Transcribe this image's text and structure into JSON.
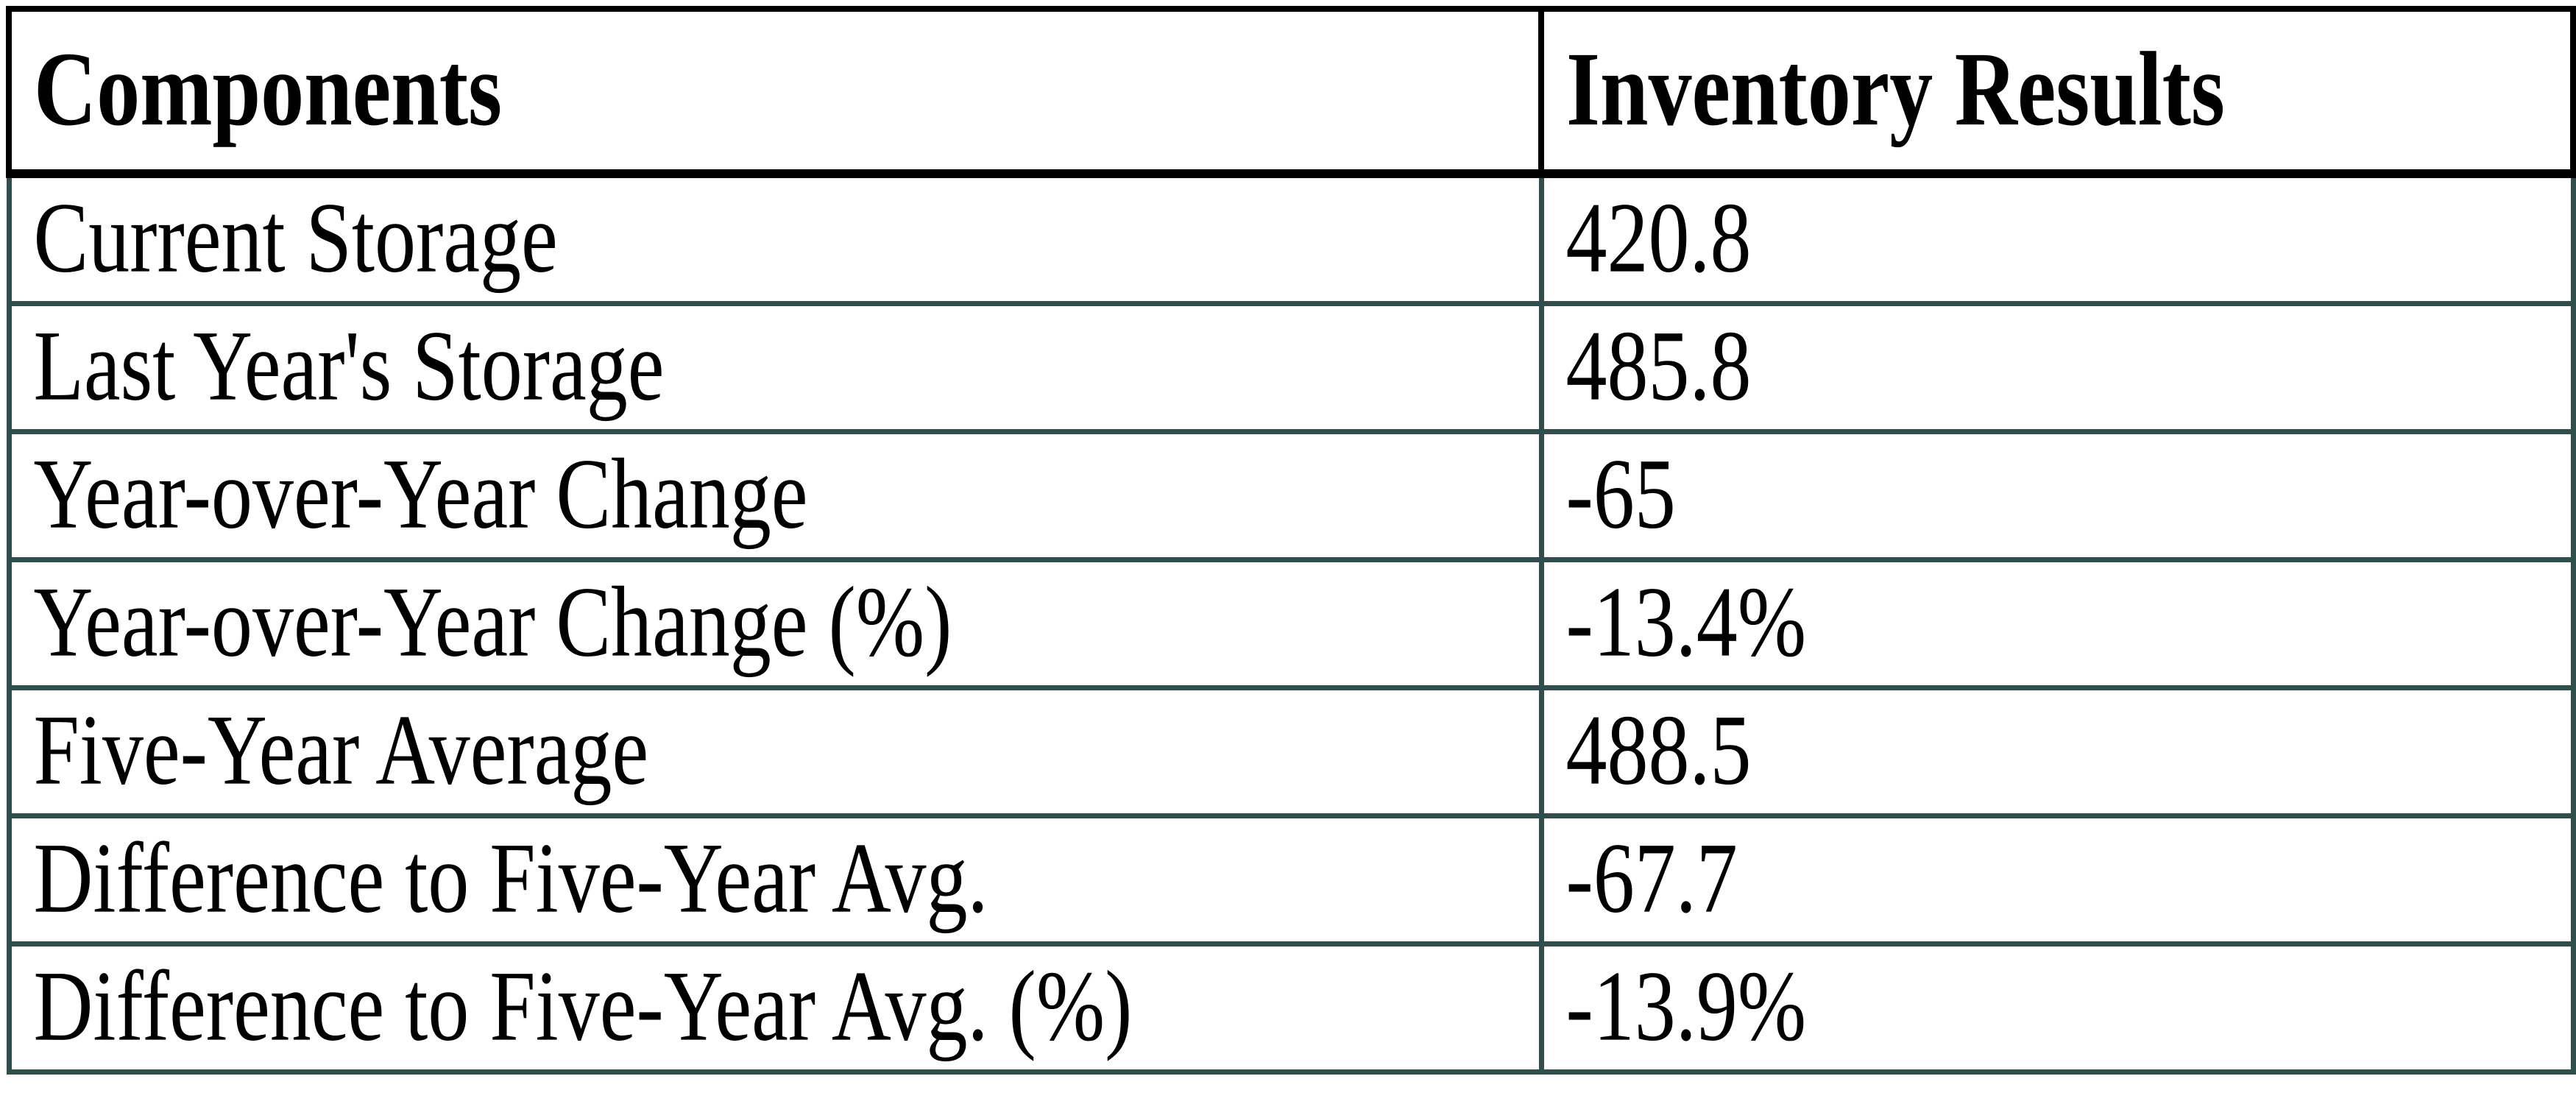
{
  "chart_data": {
    "type": "table",
    "title": "",
    "columns": [
      "Components",
      "Inventory Results"
    ],
    "rows": [
      [
        "Current Storage",
        "420.8"
      ],
      [
        "Last Year's Storage",
        "485.8"
      ],
      [
        "Year-over-Year Change",
        "-65"
      ],
      [
        "Year-over-Year Change (%)",
        "-13.4%"
      ],
      [
        "Five-Year Average",
        "488.5"
      ],
      [
        "Difference to Five-Year Avg.",
        "-67.7"
      ],
      [
        "Difference to Five-Year Avg. (%)",
        "-13.9%"
      ]
    ]
  },
  "colors": {
    "header_border": "#000000",
    "body_border": "#2F4F4F",
    "text": "#000000",
    "background": "#FFFFFF"
  }
}
